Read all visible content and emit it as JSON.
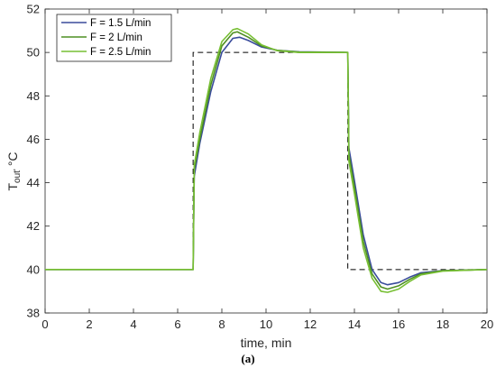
{
  "chart_data": {
    "type": "line",
    "xlabel": "time, min",
    "ylabel": "T",
    "ylabel_sub": "out'",
    "ylabel_unit": "°C",
    "caption": "(a)",
    "xlim": [
      0,
      20
    ],
    "ylim": [
      38,
      52
    ],
    "xticks": [
      0,
      2,
      4,
      6,
      8,
      10,
      12,
      14,
      16,
      18,
      20
    ],
    "yticks": [
      38,
      40,
      42,
      44,
      46,
      48,
      50,
      52
    ],
    "grid": false,
    "legend_position": "top-left",
    "setpoint": {
      "style": "dashed",
      "color": "#000000",
      "points": [
        [
          0,
          40
        ],
        [
          6.7,
          40
        ],
        [
          6.7,
          50
        ],
        [
          13.7,
          50
        ],
        [
          13.7,
          40
        ],
        [
          20,
          40
        ]
      ]
    },
    "series": [
      {
        "name": "F = 1.5 L/min",
        "color": "#3a4c9c",
        "points": [
          [
            0,
            40
          ],
          [
            6.7,
            40
          ],
          [
            6.75,
            44.3
          ],
          [
            7.0,
            45.8
          ],
          [
            7.5,
            48.2
          ],
          [
            8.0,
            50.0
          ],
          [
            8.5,
            50.65
          ],
          [
            8.8,
            50.7
          ],
          [
            9.2,
            50.55
          ],
          [
            9.8,
            50.25
          ],
          [
            10.5,
            50.1
          ],
          [
            11.5,
            50.03
          ],
          [
            13.7,
            50.0
          ],
          [
            13.75,
            45.6
          ],
          [
            14.0,
            44.1
          ],
          [
            14.4,
            41.6
          ],
          [
            14.8,
            40.0
          ],
          [
            15.2,
            39.4
          ],
          [
            15.5,
            39.3
          ],
          [
            16.0,
            39.4
          ],
          [
            16.5,
            39.65
          ],
          [
            17.0,
            39.85
          ],
          [
            18.0,
            39.95
          ],
          [
            20,
            40.0
          ]
        ]
      },
      {
        "name": "F = 2 L/min",
        "color": "#4f8f23",
        "points": [
          [
            0,
            40
          ],
          [
            6.7,
            40
          ],
          [
            6.75,
            44.6
          ],
          [
            7.0,
            46.0
          ],
          [
            7.5,
            48.5
          ],
          [
            8.0,
            50.3
          ],
          [
            8.5,
            50.9
          ],
          [
            8.7,
            50.95
          ],
          [
            9.2,
            50.7
          ],
          [
            9.8,
            50.3
          ],
          [
            10.5,
            50.1
          ],
          [
            11.5,
            50.02
          ],
          [
            13.7,
            50.0
          ],
          [
            13.75,
            45.3
          ],
          [
            14.0,
            43.8
          ],
          [
            14.4,
            41.3
          ],
          [
            14.8,
            39.8
          ],
          [
            15.2,
            39.2
          ],
          [
            15.5,
            39.1
          ],
          [
            16.0,
            39.25
          ],
          [
            16.5,
            39.55
          ],
          [
            17.0,
            39.8
          ],
          [
            18.0,
            39.95
          ],
          [
            20,
            40.0
          ]
        ]
      },
      {
        "name": "F = 2.5 L/min",
        "color": "#77bf33",
        "points": [
          [
            0,
            40
          ],
          [
            6.7,
            40
          ],
          [
            6.75,
            44.8
          ],
          [
            7.0,
            46.3
          ],
          [
            7.5,
            48.8
          ],
          [
            8.0,
            50.5
          ],
          [
            8.5,
            51.05
          ],
          [
            8.7,
            51.1
          ],
          [
            9.2,
            50.85
          ],
          [
            9.8,
            50.35
          ],
          [
            10.5,
            50.08
          ],
          [
            11.5,
            50.0
          ],
          [
            13.7,
            50.0
          ],
          [
            13.75,
            45.0
          ],
          [
            14.0,
            43.5
          ],
          [
            14.4,
            41.0
          ],
          [
            14.8,
            39.6
          ],
          [
            15.2,
            39.0
          ],
          [
            15.5,
            38.95
          ],
          [
            16.0,
            39.1
          ],
          [
            16.5,
            39.45
          ],
          [
            17.0,
            39.75
          ],
          [
            18.0,
            39.93
          ],
          [
            20,
            40.0
          ]
        ]
      }
    ]
  }
}
